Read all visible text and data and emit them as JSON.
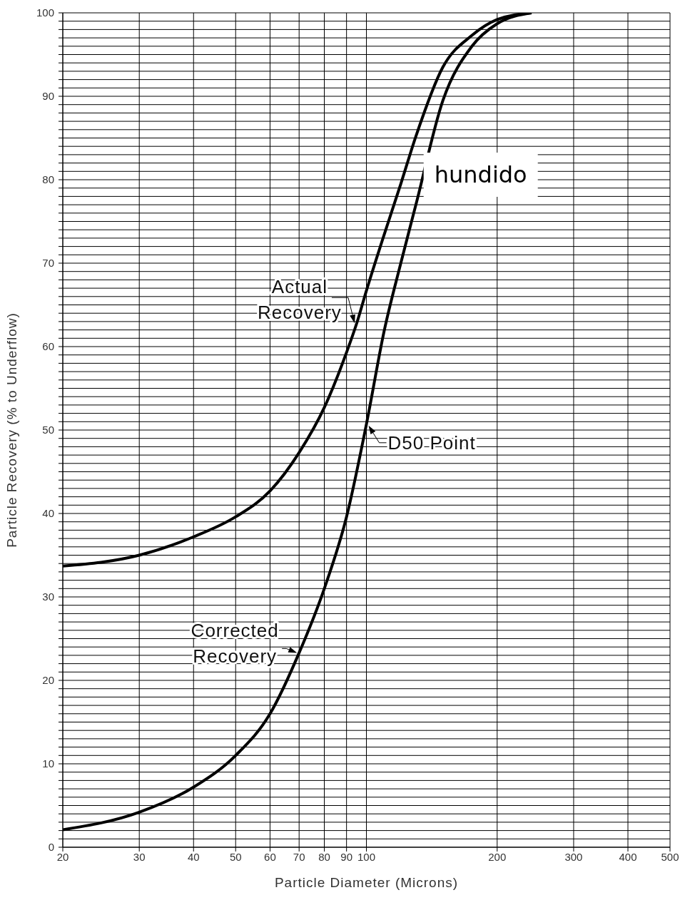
{
  "chart_data": {
    "type": "line",
    "xlabel": "Particle Diameter (Microns)",
    "ylabel": "Particle Recovery (% to Underflow)",
    "log": "x",
    "xlim": [
      20,
      500
    ],
    "xticks": [
      20,
      30,
      40,
      50,
      60,
      70,
      80,
      90,
      100,
      200,
      300,
      400,
      500
    ],
    "ylim": [
      0,
      100
    ],
    "yticks": [
      0,
      {
        "value": 1,
        "label": null
      },
      {
        "value": 2,
        "label": null
      },
      {
        "value": 3,
        "label": null
      },
      {
        "value": 4,
        "label": null
      },
      {
        "value": 5,
        "label": null
      },
      {
        "value": 6,
        "label": null
      },
      {
        "value": 7,
        "label": null
      },
      {
        "value": 8,
        "label": null
      },
      {
        "value": 9,
        "label": null
      },
      10,
      {
        "value": 11,
        "label": null
      },
      {
        "value": 12,
        "label": null
      },
      {
        "value": 13,
        "label": null
      },
      {
        "value": 14,
        "label": null
      },
      {
        "value": 15,
        "label": null
      },
      {
        "value": 16,
        "label": null
      },
      {
        "value": 17,
        "label": null
      },
      {
        "value": 18,
        "label": null
      },
      {
        "value": 19,
        "label": null
      },
      20,
      {
        "value": 21,
        "label": null
      },
      {
        "value": 22,
        "label": null
      },
      {
        "value": 23,
        "label": null
      },
      {
        "value": 24,
        "label": null
      },
      {
        "value": 25,
        "label": null
      },
      {
        "value": 26,
        "label": null
      },
      {
        "value": 27,
        "label": null
      },
      {
        "value": 28,
        "label": null
      },
      {
        "value": 29,
        "label": null
      },
      30,
      {
        "value": 31,
        "label": null
      },
      {
        "value": 32,
        "label": null
      },
      {
        "value": 33,
        "label": null
      },
      {
        "value": 34,
        "label": null
      },
      {
        "value": 35,
        "label": null
      },
      {
        "value": 36,
        "label": null
      },
      {
        "value": 37,
        "label": null
      },
      {
        "value": 38,
        "label": null
      },
      {
        "value": 39,
        "label": null
      },
      40,
      {
        "value": 41,
        "label": null
      },
      {
        "value": 42,
        "label": null
      },
      {
        "value": 43,
        "label": null
      },
      {
        "value": 44,
        "label": null
      },
      {
        "value": 45,
        "label": null
      },
      {
        "value": 46,
        "label": null
      },
      {
        "value": 47,
        "label": null
      },
      {
        "value": 48,
        "label": null
      },
      {
        "value": 49,
        "label": null
      },
      50,
      {
        "value": 51,
        "label": null
      },
      {
        "value": 52,
        "label": null
      },
      {
        "value": 53,
        "label": null
      },
      {
        "value": 54,
        "label": null
      },
      {
        "value": 55,
        "label": null
      },
      {
        "value": 56,
        "label": null
      },
      {
        "value": 57,
        "label": null
      },
      {
        "value": 58,
        "label": null
      },
      {
        "value": 59,
        "label": null
      },
      60,
      {
        "value": 61,
        "label": null
      },
      {
        "value": 62,
        "label": null
      },
      {
        "value": 63,
        "label": null
      },
      {
        "value": 64,
        "label": null
      },
      {
        "value": 65,
        "label": null
      },
      {
        "value": 66,
        "label": null
      },
      {
        "value": 67,
        "label": null
      },
      {
        "value": 68,
        "label": null
      },
      {
        "value": 69,
        "label": null
      },
      70,
      {
        "value": 71,
        "label": null
      },
      {
        "value": 72,
        "label": null
      },
      {
        "value": 73,
        "label": null
      },
      {
        "value": 74,
        "label": null
      },
      {
        "value": 75,
        "label": null
      },
      {
        "value": 76,
        "label": null
      },
      {
        "value": 77,
        "label": null
      },
      {
        "value": 78,
        "label": null
      },
      {
        "value": 79,
        "label": null
      },
      80,
      {
        "value": 81,
        "label": null
      },
      {
        "value": 82,
        "label": null
      },
      {
        "value": 83,
        "label": null
      },
      {
        "value": 84,
        "label": null
      },
      {
        "value": 85,
        "label": null
      },
      {
        "value": 86,
        "label": null
      },
      {
        "value": 87,
        "label": null
      },
      {
        "value": 88,
        "label": null
      },
      {
        "value": 89,
        "label": null
      },
      90,
      {
        "value": 91,
        "label": null
      },
      {
        "value": 92,
        "label": null
      },
      {
        "value": 93,
        "label": null
      },
      {
        "value": 94,
        "label": null
      },
      {
        "value": 95,
        "label": null
      },
      {
        "value": 96,
        "label": null
      },
      {
        "value": 97,
        "label": null
      },
      {
        "value": 98,
        "label": null
      },
      {
        "value": 99,
        "label": null
      },
      100
    ],
    "grid": true,
    "marker": "none",
    "line_style": "solid",
    "series": [
      {
        "color": "#000000",
        "x": [
          20,
          30,
          40,
          50,
          60,
          70,
          80,
          90,
          95,
          100,
          110,
          120,
          130,
          150,
          175,
          200,
          240
        ],
        "values": [
          33.7,
          35.0,
          37.2,
          39.6,
          42.7,
          47.3,
          52.7,
          59.3,
          62.8,
          66.7,
          73.5,
          79.5,
          85.2,
          93.5,
          97.3,
          99.2,
          100
        ]
      },
      {
        "color": "#000000",
        "x": [
          20,
          30,
          40,
          50,
          60,
          70,
          80,
          90,
          100,
          110,
          120,
          130,
          150,
          175,
          200,
          240
        ],
        "values": [
          2.1,
          4.2,
          7.2,
          11,
          16,
          23.3,
          31,
          39.6,
          50.7,
          62,
          70,
          77,
          89.5,
          96,
          98.7,
          100
        ]
      }
    ],
    "annotations": [
      {
        "text": "Actual Recovery",
        "x": 95,
        "y": 62.8
      },
      {
        "text": "Corrected Recovery",
        "x": 70,
        "y": 23.3
      },
      {
        "text": "D50 Point",
        "x": 100,
        "y": 50.7
      },
      "hundido"
    ]
  }
}
